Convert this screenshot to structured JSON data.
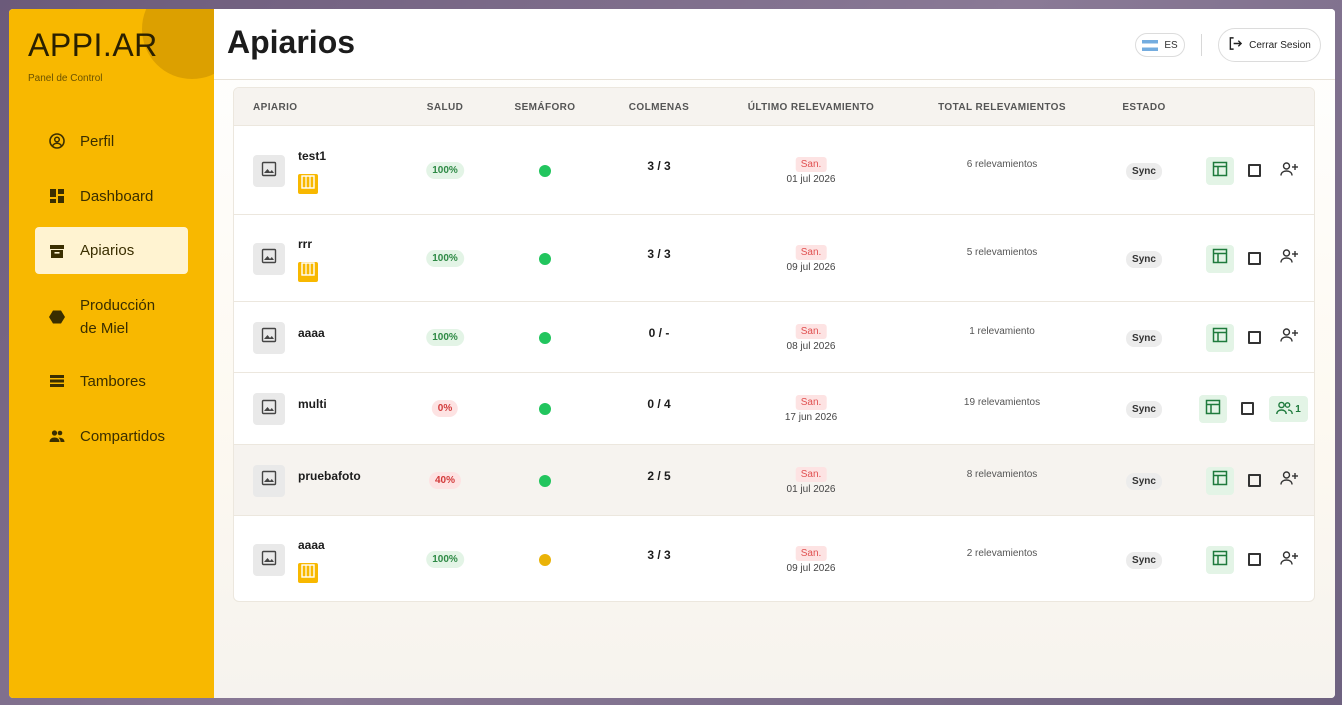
{
  "brand": {
    "name": "APPI.AR",
    "subtitle": "Panel de Control"
  },
  "colors": {
    "sidebar": "#f8b800",
    "accent_green": "#22c55e",
    "warning_yellow": "#eab308"
  },
  "sidebar": {
    "items": [
      {
        "label": "Perfil",
        "icon": "user-circle-icon"
      },
      {
        "label": "Dashboard",
        "icon": "dashboard-icon"
      },
      {
        "label": "Apiarios",
        "icon": "archive-box-icon",
        "active": true
      },
      {
        "label": "Producción de Miel",
        "icon": "hexagon-icon"
      },
      {
        "label": "Tambores",
        "icon": "list-icon"
      },
      {
        "label": "Compartidos",
        "icon": "people-icon"
      }
    ]
  },
  "header": {
    "title": "Apiarios",
    "language": "ES",
    "logout_label": "Cerrar Sesion"
  },
  "table": {
    "columns": [
      "APIARIO",
      "SALUD",
      "SEMÁFORO",
      "COLMENAS",
      "ÚLTIMO RELEVAMIENTO",
      "TOTAL RELEVAMIENTOS",
      "ESTADO"
    ],
    "rows": [
      {
        "name": "test1",
        "has_hive_badge": true,
        "health": "100%",
        "health_status": "good",
        "semaforo": "green",
        "colmenas": "3 / 3",
        "day": "San.",
        "date": "01 jul 2026",
        "relevamientos": "6 relevamientos",
        "estado": "Sync",
        "shared": null
      },
      {
        "name": "rrr",
        "has_hive_badge": true,
        "health": "100%",
        "health_status": "good",
        "semaforo": "green",
        "colmenas": "3 / 3",
        "day": "San.",
        "date": "09 jul 2026",
        "relevamientos": "5 relevamientos",
        "estado": "Sync",
        "shared": null
      },
      {
        "name": "aaaa",
        "has_hive_badge": false,
        "health": "100%",
        "health_status": "good",
        "semaforo": "green",
        "colmenas": "0 / -",
        "day": "San.",
        "date": "08 jul 2026",
        "relevamientos": "1 relevamiento",
        "estado": "Sync",
        "shared": null
      },
      {
        "name": "multi",
        "has_hive_badge": false,
        "health": "0%",
        "health_status": "bad",
        "semaforo": "green",
        "colmenas": "0 / 4",
        "day": "San.",
        "date": "17 jun 2026",
        "relevamientos": "19 relevamientos",
        "estado": "Sync",
        "shared": "1"
      },
      {
        "name": "pruebafoto",
        "has_hive_badge": false,
        "health": "40%",
        "health_status": "bad",
        "semaforo": "green",
        "colmenas": "2 / 5",
        "day": "San.",
        "date": "01 jul 2026",
        "relevamientos": "8 relevamientos",
        "estado": "Sync",
        "shared": null,
        "highlighted": true
      },
      {
        "name": "aaaa",
        "has_hive_badge": true,
        "health": "100%",
        "health_status": "good",
        "semaforo": "yellow",
        "colmenas": "3 / 3",
        "day": "San.",
        "date": "09 jul 2026",
        "relevamientos": "2 relevamientos",
        "estado": "Sync",
        "shared": null
      }
    ]
  }
}
